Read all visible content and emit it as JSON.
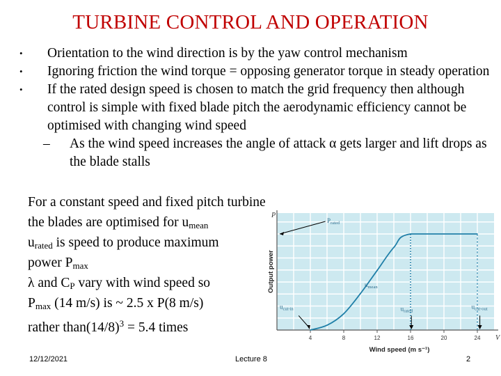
{
  "slide": {
    "title": "TURBINE CONTROL AND OPERATION",
    "bullets": [
      {
        "marker": "•",
        "text": "Orientation to the wind direction is by the yaw control mechanism"
      },
      {
        "marker": "•",
        "text": "Ignoring friction the wind torque =  opposing generator torque in steady operation"
      },
      {
        "marker": "•",
        "text": "If the rated design speed is chosen to match the grid frequency then although control is simple with fixed blade pitch the aerodynamic efficiency cannot be optimised with changing wind speed"
      }
    ],
    "sub_bullet": {
      "marker": "–",
      "text_before": "As the wind speed increases the angle of attack ",
      "symbol": "α",
      "text_after": " gets larger and lift drops as the blade stalls"
    },
    "body_lines": {
      "line1": "For a constant speed and fixed pitch turbine",
      "line2_a": "the blades are optimised for u",
      "line2_sub": "mean",
      "line3_a": "u",
      "line3_sub": "rated",
      "line3_b": " is speed to produce maximum",
      "line4_a": " power P",
      "line4_sub": "max",
      "line5_a": "λ and C",
      "line5_sub": "P",
      "line5_b": " vary with wind speed so",
      "line6_a": "P",
      "line6_sub": "max",
      "line6_b": " (14 m/s) is ~ 2.5  x P(8 m/s)",
      "line7_a": "rather than(14/8)",
      "line7_sup": "3",
      "line7_b": " = 5.4 times"
    },
    "footer": {
      "date": "12/12/2021",
      "lecture": "Lecture 8",
      "page": "2"
    }
  },
  "chart_data": {
    "type": "line",
    "title": "",
    "xlabel": "Wind speed (m s⁻¹)",
    "ylabel": "Output power",
    "x_axis_end_label": "V",
    "y_axis_end_label": "P",
    "xlim": [
      0,
      26
    ],
    "ylim": [
      0,
      1
    ],
    "x_ticks": [
      4,
      8,
      12,
      16,
      20,
      24
    ],
    "grid": true,
    "series": [
      {
        "x": [
          4,
          6,
          8,
          10,
          12,
          14,
          16,
          24
        ],
        "y": [
          0.0,
          0.05,
          0.17,
          0.38,
          0.62,
          0.86,
          1.0,
          1.0
        ]
      }
    ],
    "annotations": [
      {
        "label": "P",
        "sub": "rated"
      },
      {
        "label": "u",
        "sub": "mean"
      },
      {
        "label": "u",
        "sub": "cut-in"
      },
      {
        "label": "u",
        "sub": "rated"
      },
      {
        "label": "u",
        "sub": "cut-out"
      }
    ],
    "colors": {
      "plot_bg": "#cde9f0",
      "curve": "#1f7fa8",
      "grid": "#ffffff",
      "axis": "#555555",
      "label": "#2f6f8f"
    }
  }
}
